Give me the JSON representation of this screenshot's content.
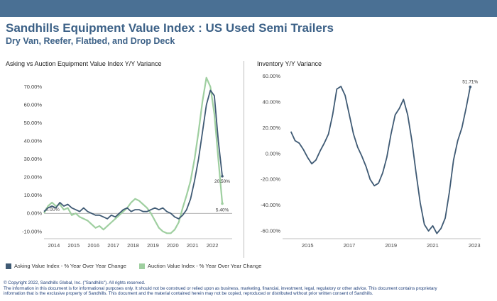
{
  "header": {
    "title": "Sandhills Equipment Value Index : US Used Semi Trailers",
    "subtitle": "Dry Van, Reefer, Flatbed, and Drop Deck"
  },
  "colors": {
    "banner": "#4a7094",
    "asking": "#3f5a74",
    "auction": "#9fcfa0",
    "title": "#3c6187"
  },
  "chart_data": [
    {
      "type": "line",
      "title": "Asking vs Auction Equipment Value Index Y/Y Variance",
      "x_tick_labels": [
        "2014",
        "2015",
        "2016",
        "2017",
        "2018",
        "2019",
        "2020",
        "2021",
        "2022"
      ],
      "y_tick_labels": [
        "-10.00%",
        "0.00%",
        "10.00%",
        "20.00%",
        "30.00%",
        "40.00%",
        "50.00%",
        "60.00%",
        "70.00%"
      ],
      "xlim": [
        2013.5,
        2023.0
      ],
      "ylim": [
        -14,
        78
      ],
      "grid": false,
      "legend_position": "bottom",
      "annotations": [
        "0.00%",
        "20.50%",
        "5.40%"
      ],
      "series": [
        {
          "name": "Asking Value Index - % Year Over Year Change",
          "x": [
            2013.5,
            2013.7,
            2013.9,
            2014.1,
            2014.3,
            2014.5,
            2014.7,
            2014.9,
            2015.1,
            2015.3,
            2015.5,
            2015.7,
            2015.9,
            2016.1,
            2016.3,
            2016.5,
            2016.7,
            2016.9,
            2017.1,
            2017.3,
            2017.5,
            2017.7,
            2017.9,
            2018.1,
            2018.3,
            2018.5,
            2018.7,
            2018.9,
            2019.1,
            2019.3,
            2019.5,
            2019.7,
            2019.9,
            2020.1,
            2020.3,
            2020.5,
            2020.7,
            2020.9,
            2021.1,
            2021.3,
            2021.5,
            2021.7,
            2021.9,
            2022.1,
            2022.3,
            2022.5
          ],
          "y": [
            1,
            3,
            4,
            3,
            6,
            4,
            5,
            3,
            2,
            1,
            3,
            1,
            0,
            -1,
            -1,
            -2,
            -3,
            -1,
            -2,
            0,
            2,
            3,
            1,
            2,
            2,
            1,
            1,
            2,
            3,
            2,
            3,
            1,
            0,
            -2,
            -3,
            -1,
            2,
            8,
            18,
            30,
            45,
            60,
            68,
            65,
            40,
            20.5
          ]
        },
        {
          "name": "Auction Value Index - % Year Over Year Change",
          "x": [
            2013.5,
            2013.7,
            2013.9,
            2014.1,
            2014.3,
            2014.5,
            2014.7,
            2014.9,
            2015.1,
            2015.3,
            2015.5,
            2015.7,
            2015.9,
            2016.1,
            2016.3,
            2016.5,
            2016.7,
            2016.9,
            2017.1,
            2017.3,
            2017.5,
            2017.7,
            2017.9,
            2018.1,
            2018.3,
            2018.5,
            2018.7,
            2018.9,
            2019.1,
            2019.3,
            2019.5,
            2019.7,
            2019.9,
            2020.1,
            2020.3,
            2020.5,
            2020.7,
            2020.9,
            2021.1,
            2021.3,
            2021.5,
            2021.7,
            2021.9,
            2022.1,
            2022.3,
            2022.5
          ],
          "y": [
            0,
            4,
            6,
            4,
            5,
            2,
            3,
            -1,
            0,
            -2,
            -3,
            -4,
            -6,
            -8,
            -7,
            -9,
            -7,
            -5,
            -3,
            -1,
            1,
            3,
            6,
            8,
            7,
            5,
            3,
            0,
            -4,
            -8,
            -10,
            -11,
            -11,
            -9,
            -5,
            3,
            10,
            18,
            30,
            45,
            62,
            75,
            70,
            55,
            30,
            5.4
          ]
        }
      ]
    },
    {
      "type": "line",
      "title": "Inventory Y/Y Variance",
      "x_tick_labels": [
        "2015",
        "2017",
        "2019",
        "2021",
        "2023"
      ],
      "y_tick_labels": [
        "-60.00%",
        "-40.00%",
        "-20.00%",
        "0.00%",
        "20.00%",
        "40.00%",
        "60.00%"
      ],
      "xlim": [
        2013.8,
        2023.3
      ],
      "ylim": [
        -66,
        63
      ],
      "grid": false,
      "annotations": [
        "51.71%"
      ],
      "series": [
        {
          "name": "",
          "x": [
            2014.2,
            2014.4,
            2014.6,
            2014.8,
            2015.0,
            2015.2,
            2015.4,
            2015.6,
            2015.8,
            2016.0,
            2016.2,
            2016.4,
            2016.6,
            2016.8,
            2017.0,
            2017.2,
            2017.4,
            2017.6,
            2017.8,
            2018.0,
            2018.2,
            2018.4,
            2018.6,
            2018.8,
            2019.0,
            2019.2,
            2019.4,
            2019.6,
            2019.8,
            2020.0,
            2020.2,
            2020.4,
            2020.6,
            2020.8,
            2021.0,
            2021.2,
            2021.4,
            2021.6,
            2021.8,
            2022.0,
            2022.2,
            2022.4,
            2022.6,
            2022.8
          ],
          "y": [
            17,
            10,
            8,
            3,
            -3,
            -8,
            -5,
            2,
            8,
            15,
            30,
            50,
            52,
            45,
            30,
            15,
            5,
            -2,
            -10,
            -20,
            -25,
            -23,
            -15,
            -3,
            15,
            30,
            35,
            42,
            30,
            10,
            -15,
            -38,
            -55,
            -60,
            -56,
            -62,
            -58,
            -50,
            -30,
            -5,
            10,
            20,
            35,
            51.71
          ]
        }
      ]
    }
  ],
  "legend": {
    "asking_label": "Asking Value Index - % Year Over Year Change",
    "auction_label": "Auction Value Index - % Year Over Year Change"
  },
  "footer": {
    "line1": "© Copyright 2022, Sandhills Global, Inc. (\"Sandhills\"). All rights reserved.",
    "line2": "The information in this document is for informational purposes only.  It should not be construed or relied upon as business, marketing, financial, investment, legal, regulatory or other advice. This document contains proprietary",
    "line3": "information that is the exclusive property of Sandhills. This document and the material contained herein may not be copied, reproduced or distributed without prior written consent of Sandhills."
  }
}
